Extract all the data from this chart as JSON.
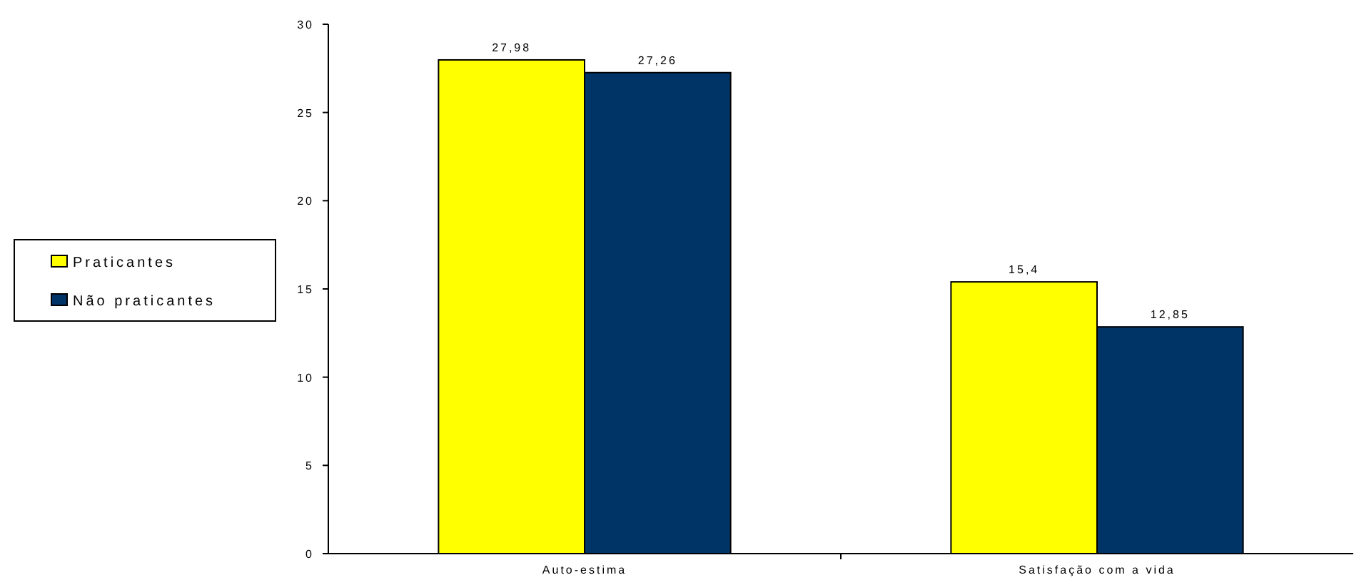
{
  "chart_data": {
    "type": "bar",
    "categories": [
      "Auto-estima",
      "Satisfação com a vida"
    ],
    "series": [
      {
        "name": "Praticantes",
        "color": "#ffff00",
        "values": [
          27.98,
          15.4
        ],
        "value_labels": [
          "27,98",
          "15,4"
        ]
      },
      {
        "name": "Não praticantes",
        "color": "#003366",
        "values": [
          27.26,
          12.85
        ],
        "value_labels": [
          "27,26",
          "12,85"
        ]
      }
    ],
    "ylim": [
      0,
      30
    ],
    "yticks": [
      0,
      5,
      10,
      15,
      20,
      25,
      30
    ],
    "grid": false,
    "legend": "left"
  }
}
